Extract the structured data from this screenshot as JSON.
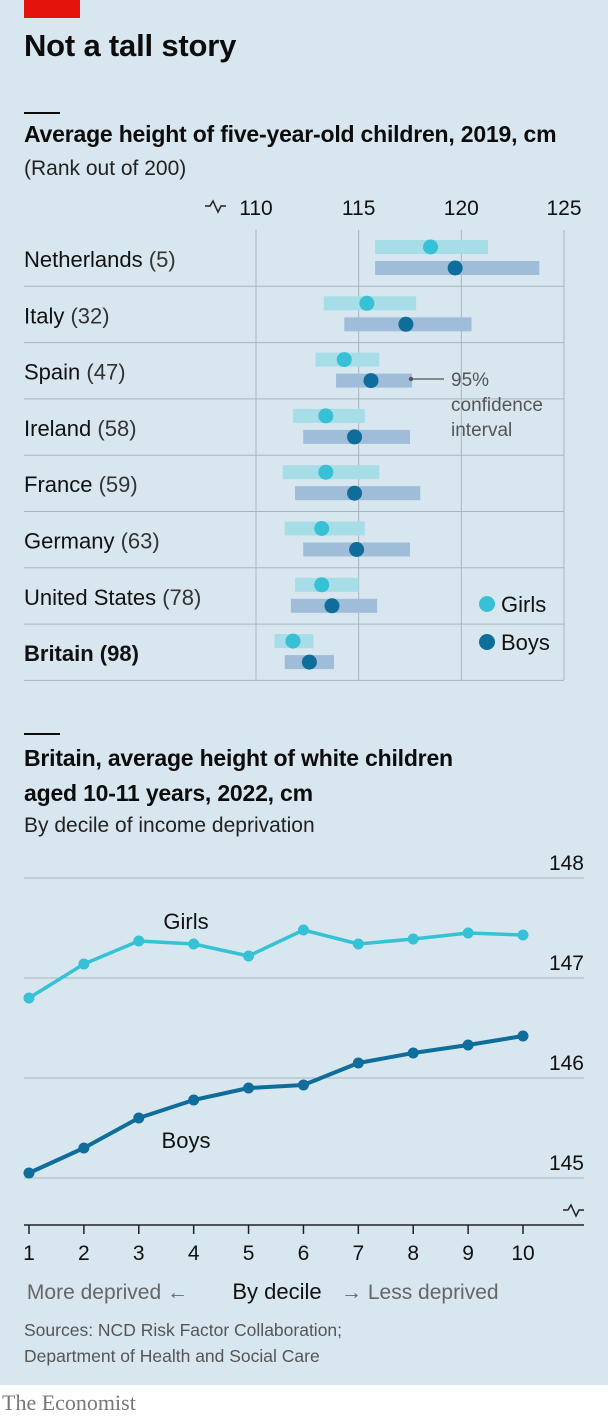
{
  "header": {
    "title": "Not a tall story"
  },
  "chart1": {
    "title": "Average height of five-year-old children, 2019, cm",
    "subtitle": "(Rank out of 200)",
    "annotation": [
      "95%",
      "confidence",
      "interval"
    ],
    "legend": {
      "girls": "Girls",
      "boys": "Boys"
    },
    "colors": {
      "girls_point": "#36c1d6",
      "girls_band": "#a6dde7",
      "boys_point": "#0f6d9c",
      "boys_band": "#9fbcd9"
    }
  },
  "chart2": {
    "title_line1": "Britain, average height of white children",
    "title_line2": "aged 10-11 years, 2022, cm",
    "subtitle": "By decile of income deprivation",
    "axis_caption": {
      "left": "More deprived ←",
      "center": "By decile",
      "right": "→ Less deprived"
    },
    "colors": {
      "girls": "#36c1d6",
      "boys": "#0f6d9c"
    }
  },
  "footer": {
    "sources_line1": "Sources: NCD Risk Factor Collaboration;",
    "sources_line2": "Department of Health and Social Care",
    "brand": "The Economist"
  },
  "chart_data": [
    {
      "type": "scatter",
      "x_axis": {
        "min": 110,
        "max": 125,
        "ticks": [
          110,
          115,
          120,
          125
        ]
      },
      "categories": [
        "Netherlands",
        "Italy",
        "Spain",
        "Ireland",
        "France",
        "Germany",
        "United States",
        "Britain"
      ],
      "ranks": [
        "(5)",
        "(32)",
        "(47)",
        "(58)",
        "(59)",
        "(63)",
        "(78)",
        "(98)"
      ],
      "series": [
        {
          "name": "Girls",
          "values": [
            118.5,
            115.4,
            114.3,
            113.4,
            113.4,
            113.2,
            113.2,
            111.8
          ],
          "ci_low": [
            115.8,
            113.3,
            112.9,
            111.8,
            111.3,
            111.4,
            111.9,
            110.9
          ],
          "ci_high": [
            121.3,
            117.8,
            116.0,
            115.3,
            116.0,
            115.3,
            115.0,
            112.8
          ]
        },
        {
          "name": "Boys",
          "values": [
            119.7,
            117.3,
            115.6,
            114.8,
            114.8,
            114.9,
            113.7,
            112.6
          ],
          "ci_low": [
            115.8,
            114.3,
            113.9,
            112.3,
            111.9,
            112.3,
            111.7,
            111.4
          ],
          "ci_high": [
            123.8,
            120.5,
            117.6,
            117.5,
            118.0,
            117.5,
            115.9,
            113.8
          ]
        }
      ]
    },
    {
      "type": "line",
      "x": [
        1,
        2,
        3,
        4,
        5,
        6,
        7,
        8,
        9,
        10
      ],
      "y_axis": {
        "min": 145,
        "max": 148,
        "ticks": [
          145,
          146,
          147,
          148
        ]
      },
      "series": [
        {
          "name": "Girls",
          "values": [
            146.8,
            147.14,
            147.37,
            147.34,
            147.22,
            147.48,
            147.34,
            147.39,
            147.45,
            147.43
          ]
        },
        {
          "name": "Boys",
          "values": [
            145.05,
            145.3,
            145.6,
            145.78,
            145.9,
            145.93,
            146.15,
            146.25,
            146.33,
            146.42
          ]
        }
      ]
    }
  ]
}
